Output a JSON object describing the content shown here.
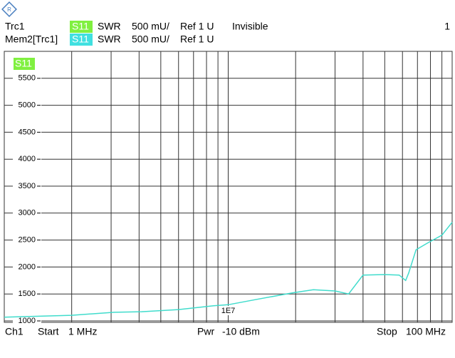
{
  "header": {
    "traces": [
      {
        "label": "Trc1",
        "param": "S11",
        "format": "SWR",
        "scale": "500 mU/",
        "ref": "Ref 1 U",
        "state": "Invisible"
      },
      {
        "label": "Mem2[Trc1]",
        "param": "S11",
        "format": "SWR",
        "scale": "500 mU/",
        "ref": "Ref 1 U"
      }
    ],
    "channel_number": "1"
  },
  "footer": {
    "channel": "Ch1",
    "start": "Start",
    "start_value": "1 MHz",
    "power": "Pwr",
    "power_value": "-10 dBm",
    "stop": "Stop",
    "stop_value": "100 MHz"
  },
  "chart_data": {
    "type": "line",
    "trace_tag": "S11",
    "log_x": true,
    "grid": true,
    "xlim": [
      1,
      100
    ],
    "ylim": [
      1000,
      6000
    ],
    "xgrid": [
      2,
      3,
      4,
      5,
      6,
      7,
      8,
      9,
      10,
      20,
      30,
      40,
      50,
      60,
      70,
      80,
      90
    ],
    "decade_marker": {
      "value": 10,
      "label": "1E7"
    },
    "yticks": [
      1000,
      1500,
      2000,
      2500,
      3000,
      3500,
      4000,
      4500,
      5000,
      5500
    ],
    "x": [
      1.0,
      2.0,
      3.1,
      4.1,
      6.0,
      8.6,
      10,
      13.4,
      19.3,
      24,
      30,
      34.5,
      40,
      50,
      58,
      62,
      64,
      69,
      78,
      90,
      100
    ],
    "series": [
      {
        "color": "#40dccc",
        "values": [
          1070,
          1105,
          1160,
          1170,
          1210,
          1280,
          1300,
          1400,
          1520,
          1580,
          1555,
          1500,
          1850,
          1860,
          1850,
          1750,
          1890,
          2320,
          2450,
          2590,
          2830
        ]
      }
    ]
  }
}
